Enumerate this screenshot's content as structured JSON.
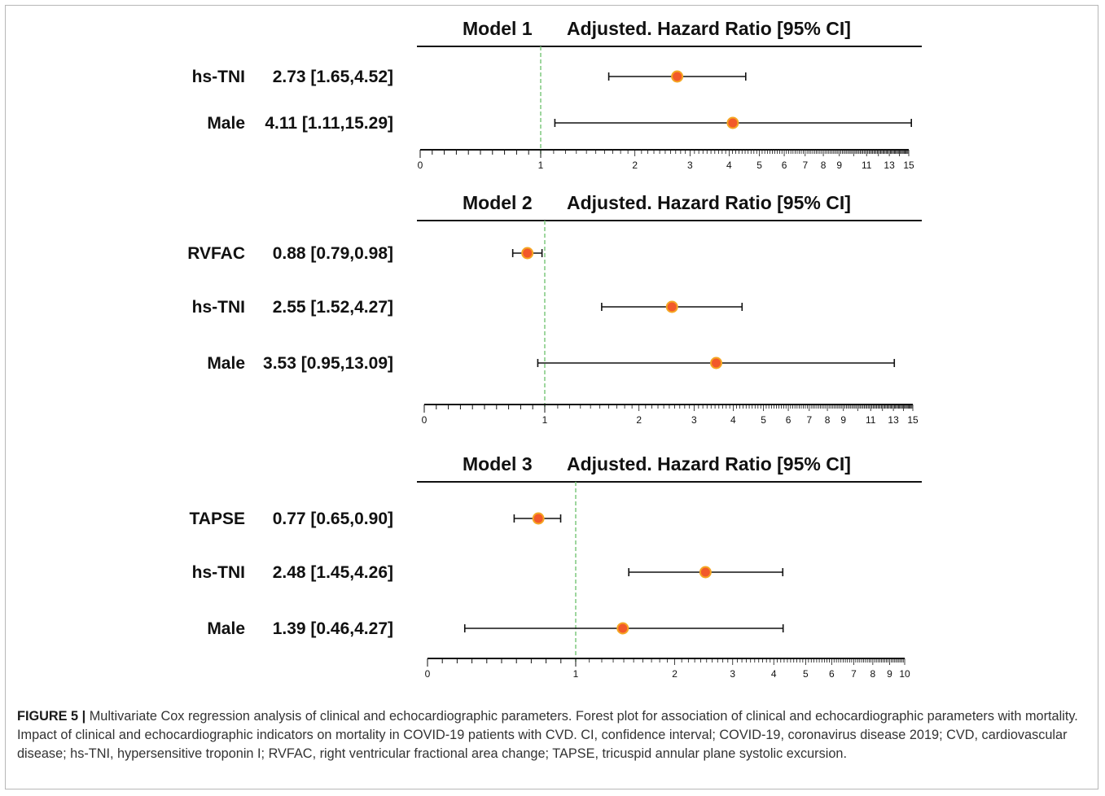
{
  "caption": {
    "label": "FIGURE 5 |",
    "text": " Multivariate Cox regression analysis of clinical and echocardiographic parameters. Forest plot for association of clinical and echocardiographic parameters with mortality. Impact of clinical and echocardiographic indicators on mortality in COVID-19 patients with CVD. CI, confidence interval; COVID-19, coronavirus disease 2019; CVD, cardiovascular disease; hs-TNI, hypersensitive troponin I; RVFAC, right ventricular fractional area change; TAPSE, tricuspid annular plane systolic excursion."
  },
  "colors": {
    "point_fill": "#f2592a",
    "point_stroke": "#f5a623",
    "reference_line": "#7fc97f"
  },
  "chart_data": [
    {
      "type": "forest",
      "model_label": "Model 1",
      "title": "Adjusted. Hazard Ratio [95% CI]",
      "scale": "log",
      "reference_value": 1,
      "tick_labels": [
        "0",
        "1",
        "2",
        "3",
        "4",
        "5",
        "6",
        "7",
        "8",
        "9",
        "11",
        "13",
        "15"
      ],
      "rows": [
        {
          "name": "hs-TNI",
          "text": "2.73 [1.65,4.52]",
          "hr": 2.73,
          "lower": 1.65,
          "upper": 4.52
        },
        {
          "name": "Male",
          "text": "4.11 [1.11,15.29]",
          "hr": 4.11,
          "lower": 1.11,
          "upper": 15.29
        }
      ]
    },
    {
      "type": "forest",
      "model_label": "Model 2",
      "title": "Adjusted. Hazard Ratio [95% CI]",
      "scale": "log",
      "reference_value": 1,
      "tick_labels": [
        "0",
        "1",
        "2",
        "3",
        "4",
        "5",
        "6",
        "7",
        "8",
        "9",
        "11",
        "13",
        "15"
      ],
      "rows": [
        {
          "name": "RVFAC",
          "text": "0.88 [0.79,0.98]",
          "hr": 0.88,
          "lower": 0.79,
          "upper": 0.98
        },
        {
          "name": "hs-TNI",
          "text": "2.55 [1.52,4.27]",
          "hr": 2.55,
          "lower": 1.52,
          "upper": 4.27
        },
        {
          "name": "Male",
          "text": "3.53 [0.95,13.09]",
          "hr": 3.53,
          "lower": 0.95,
          "upper": 13.09
        }
      ]
    },
    {
      "type": "forest",
      "model_label": "Model 3",
      "title": "Adjusted. Hazard Ratio [95% CI]",
      "scale": "log",
      "reference_value": 1,
      "tick_labels": [
        "0",
        "1",
        "2",
        "3",
        "4",
        "5",
        "6",
        "7",
        "8",
        "9",
        "10"
      ],
      "rows": [
        {
          "name": "TAPSE",
          "text": "0.77 [0.65,0.90]",
          "hr": 0.77,
          "lower": 0.65,
          "upper": 0.9
        },
        {
          "name": "hs-TNI",
          "text": "2.48 [1.45,4.26]",
          "hr": 2.48,
          "lower": 1.45,
          "upper": 4.26
        },
        {
          "name": "Male",
          "text": "1.39 [0.46,4.27]",
          "hr": 1.39,
          "lower": 0.46,
          "upper": 4.27
        }
      ]
    }
  ]
}
